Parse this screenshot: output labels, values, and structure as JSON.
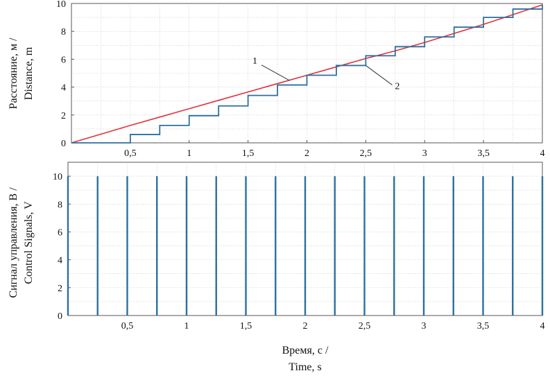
{
  "chart_data": [
    {
      "type": "line",
      "ylabel_line1": "Расстояние, м /",
      "ylabel_line2": "Distance, m",
      "xlim": [
        0,
        4
      ],
      "ylim": [
        0,
        10
      ],
      "xticks": [
        0.5,
        1,
        1.5,
        2,
        2.5,
        3,
        3.5,
        4
      ],
      "xtick_labels": [
        "0,5",
        "1",
        "1,5",
        "2",
        "2,5",
        "3",
        "3,5",
        "4"
      ],
      "yticks": [
        0,
        2,
        4,
        6,
        8,
        10
      ],
      "ytick_labels": [
        "0",
        "2",
        "4",
        "6",
        "8",
        "10"
      ],
      "grid": true,
      "series": [
        {
          "name": "1",
          "color": "#e0303a",
          "x": [
            0,
            0.25,
            0.5,
            0.75,
            1,
            1.25,
            1.5,
            1.75,
            2,
            2.25,
            2.5,
            2.75,
            3,
            3.25,
            3.5,
            3.75,
            4
          ],
          "y": [
            0,
            0.62,
            1.25,
            1.85,
            2.45,
            3.05,
            3.65,
            4.25,
            4.85,
            5.45,
            6.05,
            6.6,
            7.2,
            7.85,
            8.5,
            9.2,
            9.9
          ]
        },
        {
          "name": "2",
          "color": "#2b6f9e",
          "type": "step",
          "x": [
            0,
            0.25,
            0.5,
            0.75,
            1,
            1.25,
            1.5,
            1.75,
            2,
            2.25,
            2.5,
            2.75,
            3,
            3.25,
            3.5,
            3.75,
            4
          ],
          "y": [
            0,
            0,
            0.6,
            1.25,
            1.95,
            2.65,
            3.4,
            4.15,
            4.85,
            5.55,
            6.25,
            6.9,
            7.6,
            8.3,
            9.0,
            9.6,
            9.9
          ]
        }
      ],
      "annotations": [
        {
          "text": "1",
          "series": "1",
          "at_x": 1.85
        },
        {
          "text": "2",
          "series": "2",
          "at_x": 2.5
        }
      ]
    },
    {
      "type": "line",
      "ylabel_line1": "Сигнал управления, В /",
      "ylabel_line2": "Control Signals, V",
      "xlabel_line1": "Время, с /",
      "xlabel_line2": "Time, s",
      "xlim": [
        0,
        4
      ],
      "ylim": [
        0,
        11
      ],
      "xticks": [
        0.5,
        1,
        1.5,
        2,
        2.5,
        3,
        3.5,
        4
      ],
      "xtick_labels": [
        "0,5",
        "1",
        "1,5",
        "2",
        "2,5",
        "3",
        "3,5",
        "4"
      ],
      "yticks": [
        0,
        2,
        4,
        6,
        8,
        10
      ],
      "ytick_labels": [
        "0",
        "2",
        "4",
        "6",
        "8",
        "10"
      ],
      "grid": true,
      "series": [
        {
          "color": "#2b6f9e",
          "type": "pulses",
          "pulse_times": [
            0.0,
            0.25,
            0.5,
            0.75,
            1.0,
            1.25,
            1.5,
            1.75,
            2.0,
            2.25,
            2.5,
            2.75,
            3.0,
            3.25,
            3.5,
            3.75,
            4.0
          ],
          "pulse_value": 10
        }
      ]
    }
  ]
}
